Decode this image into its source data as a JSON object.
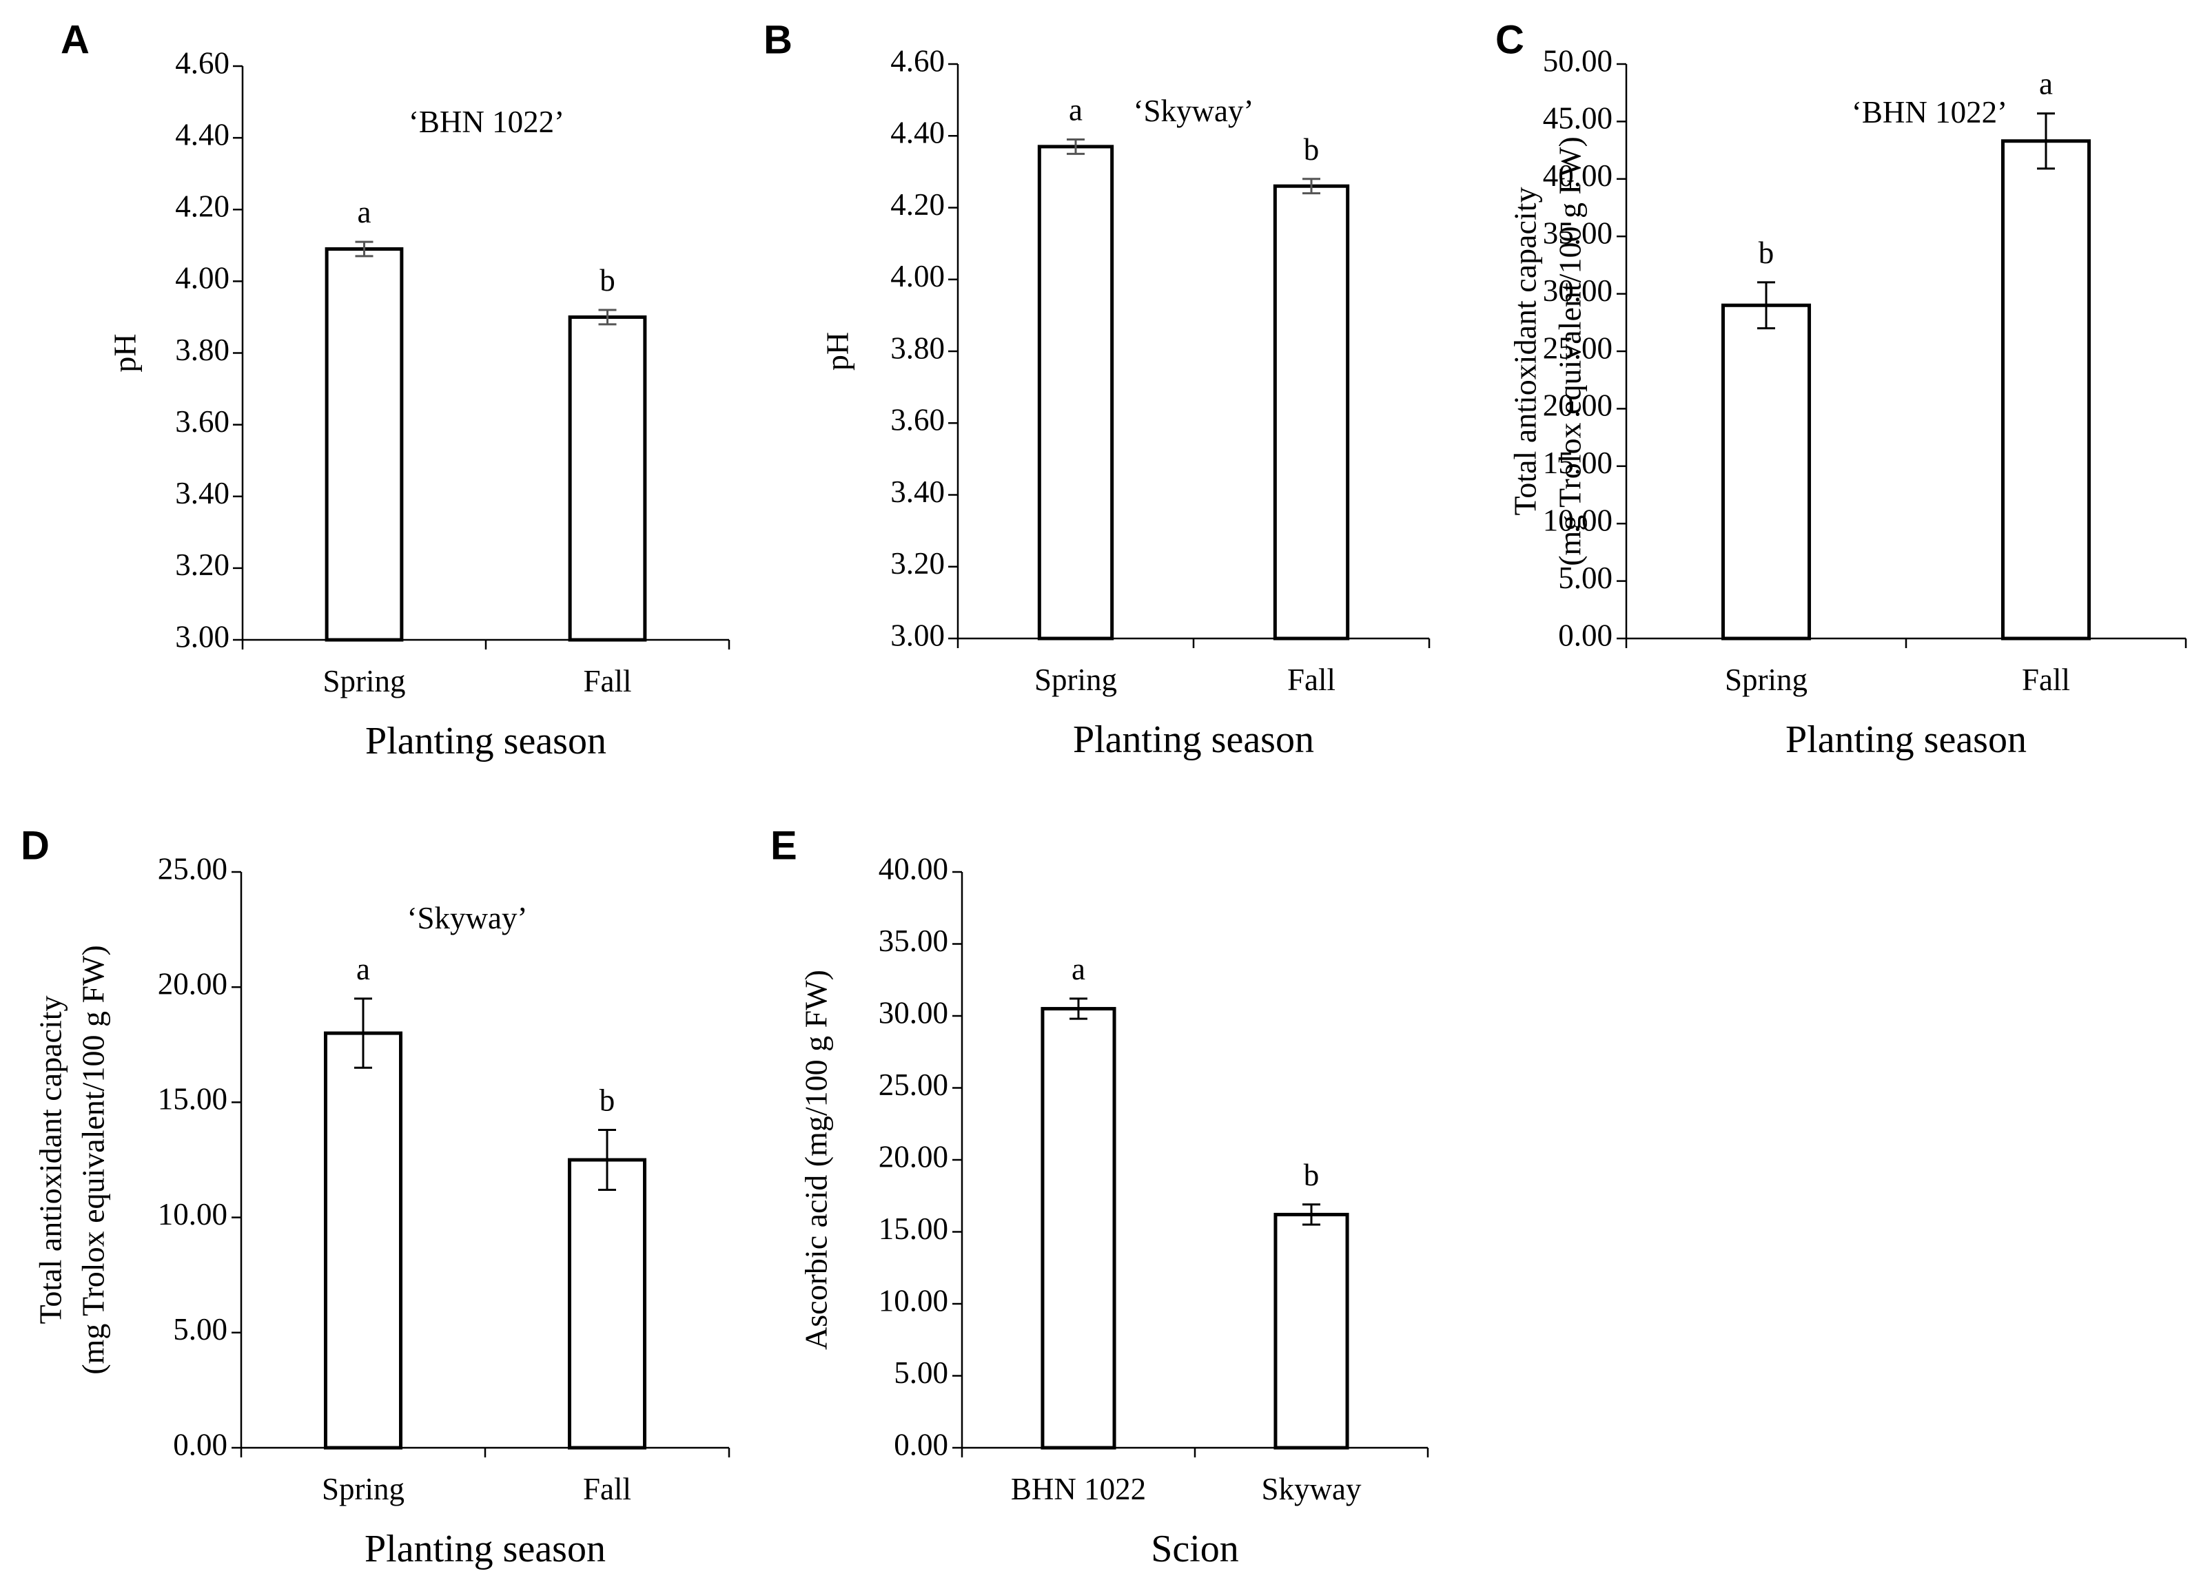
{
  "chart_data": [
    {
      "panel": "A",
      "type": "bar",
      "subtitle": "‘BHN 1022’",
      "categories": [
        "Spring",
        "Fall"
      ],
      "values": [
        4.09,
        3.9
      ],
      "errors": [
        0.02,
        0.02
      ],
      "significance": [
        "a",
        "b"
      ],
      "xlabel": "Planting season",
      "ylabel": [
        "pH"
      ],
      "ylim": [
        3.0,
        4.6
      ],
      "yticks": [
        "3.00",
        "3.20",
        "3.40",
        "3.60",
        "3.80",
        "4.00",
        "4.20",
        "4.40",
        "4.60"
      ],
      "error_color": "#555555"
    },
    {
      "panel": "B",
      "type": "bar",
      "subtitle": "‘Skyway’",
      "categories": [
        "Spring",
        "Fall"
      ],
      "values": [
        4.37,
        4.26
      ],
      "errors": [
        0.02,
        0.02
      ],
      "significance": [
        "a",
        "b"
      ],
      "xlabel": "Planting season",
      "ylabel": [
        "pH"
      ],
      "ylim": [
        3.0,
        4.6
      ],
      "yticks": [
        "3.00",
        "3.20",
        "3.40",
        "3.60",
        "3.80",
        "4.00",
        "4.20",
        "4.40",
        "4.60"
      ],
      "error_color": "#555555"
    },
    {
      "panel": "C",
      "type": "bar",
      "subtitle": "‘BHN 1022’",
      "categories": [
        "Spring",
        "Fall"
      ],
      "values": [
        29.0,
        43.3
      ],
      "errors": [
        2.0,
        2.4
      ],
      "significance": [
        "b",
        "a"
      ],
      "xlabel": "Planting season",
      "ylabel": [
        "Total antioxidant capacity",
        "(mg Trolox equivalent/100 g FW)"
      ],
      "ylim": [
        0,
        50
      ],
      "yticks": [
        "0.00",
        "5.00",
        "10.00",
        "15.00",
        "20.00",
        "25.00",
        "30.00",
        "35.00",
        "40.00",
        "45.00",
        "50.00"
      ],
      "error_color": "#000000"
    },
    {
      "panel": "D",
      "type": "bar",
      "subtitle": "‘Skyway’",
      "categories": [
        "Spring",
        "Fall"
      ],
      "values": [
        18.0,
        12.5
      ],
      "errors": [
        1.5,
        1.3
      ],
      "significance": [
        "a",
        "b"
      ],
      "xlabel": "Planting season",
      "ylabel": [
        "Total antioxidant capacity",
        "(mg Trolox equivalent/100 g FW)"
      ],
      "ylim": [
        0,
        25
      ],
      "yticks": [
        "0.00",
        "5.00",
        "10.00",
        "15.00",
        "20.00",
        "25.00"
      ],
      "error_color": "#000000"
    },
    {
      "panel": "E",
      "type": "bar",
      "subtitle": "",
      "categories": [
        "BHN 1022",
        "Skyway"
      ],
      "values": [
        30.5,
        16.2
      ],
      "errors": [
        0.7,
        0.7
      ],
      "significance": [
        "a",
        "b"
      ],
      "xlabel": "Scion",
      "ylabel": [
        "Ascorbic acid (mg/100 g FW)"
      ],
      "ylim": [
        0,
        40
      ],
      "yticks": [
        "0.00",
        "5.00",
        "10.00",
        "15.00",
        "20.00",
        "25.00",
        "30.00",
        "35.00",
        "40.00"
      ],
      "error_color": "#000000"
    }
  ]
}
